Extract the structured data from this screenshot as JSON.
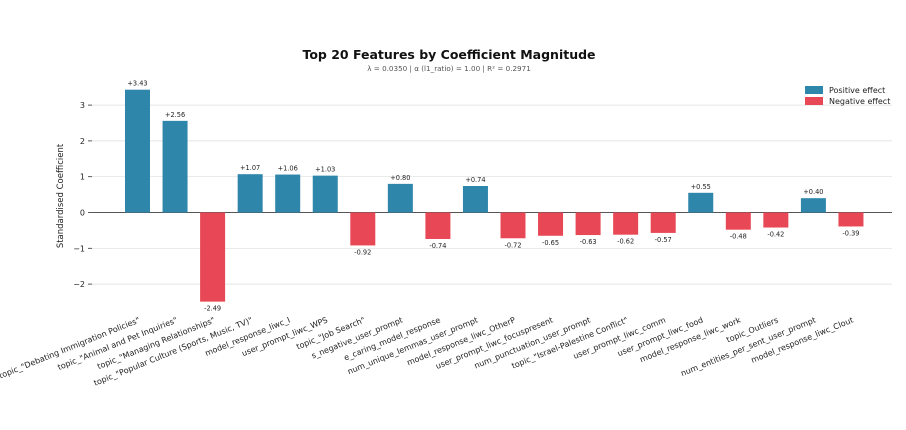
{
  "chart_data": {
    "type": "bar",
    "title": "Top 20 Features by Coefficient Magnitude",
    "subtitle": "λ = 0.0350   |   α (l1_ratio) = 1.00   |   R² = 0.2971",
    "xlabel": "",
    "ylabel": "Standardised Coefficient",
    "ylim": [
      -2.5,
      3.6
    ],
    "yticks": [
      -2,
      -1,
      0,
      1,
      2,
      3
    ],
    "grid": true,
    "legend_position": "top-right",
    "categories": [
      "topic_\"Debating Immigration Policies\"",
      "topic_\"Animal and Pet Inquiries\"",
      "topic_\"Managing Relationships\"",
      "topic_\"Popular Culture (Sports, Music, TV)\"",
      "model_response_liwc_I",
      "user_prompt_liwc_WPS",
      "topic_\"Job Search\"",
      "s_negative_user_prompt",
      "e_caring_model_response",
      "num_unique_lemmas_user_prompt",
      "model_response_liwc_OtherP",
      "user_prompt_liwc_focuspresent",
      "num_punctuation_user_prompt",
      "topic_\"Israel-Palestine Conflict\"",
      "user_prompt_liwc_comm",
      "user_prompt_liwc_food",
      "model_response_liwc_work",
      "topic_Outliers",
      "num_entities_per_sent_user_prompt",
      "model_response_liwc_Clout"
    ],
    "values": [
      3.43,
      2.56,
      -2.49,
      1.07,
      1.06,
      1.03,
      -0.92,
      0.8,
      -0.74,
      0.74,
      -0.72,
      -0.65,
      -0.63,
      -0.62,
      -0.57,
      0.55,
      -0.48,
      -0.42,
      0.4,
      -0.39
    ],
    "value_labels": [
      "+3.43",
      "+2.56",
      "-2.49",
      "+1.07",
      "+1.06",
      "+1.03",
      "-0.92",
      "+0.80",
      "-0.74",
      "+0.74",
      "-0.72",
      "-0.65",
      "-0.63",
      "-0.62",
      "-0.57",
      "+0.55",
      "-0.48",
      "-0.42",
      "+0.40",
      "-0.39"
    ],
    "series": [
      {
        "name": "Positive effect",
        "color": "#2e86ab"
      },
      {
        "name": "Negative effect",
        "color": "#e84855"
      }
    ]
  }
}
